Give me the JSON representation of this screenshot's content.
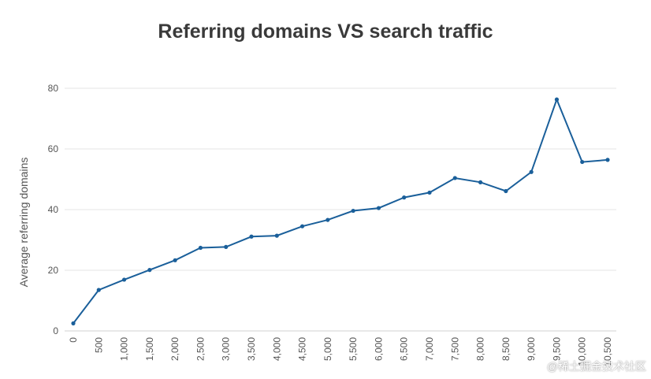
{
  "chart_data": {
    "type": "line",
    "title": "Referring domains VS search traffic",
    "xlabel": "",
    "ylabel": "Average referring domains",
    "x": [
      "0",
      "500",
      "1,000",
      "1,500",
      "2,000",
      "2,500",
      "3,000",
      "3,500",
      "4,000",
      "4,500",
      "5,000",
      "5,500",
      "6,000",
      "6,500",
      "7,000",
      "7,500",
      "8,000",
      "8,500",
      "9,000",
      "9,500",
      "10,000",
      "10,500"
    ],
    "series": [
      {
        "values": [
          2.5,
          13.5,
          16.9,
          20.1,
          23.3,
          27.4,
          27.7,
          31.1,
          31.4,
          34.5,
          36.6,
          39.6,
          40.5,
          44.0,
          45.6,
          50.4,
          49.0,
          46.1,
          52.4,
          76.3,
          55.7,
          56.4
        ]
      }
    ],
    "ylim": [
      0,
      80
    ],
    "yticks": [
      0,
      20,
      40,
      60,
      80
    ],
    "grid": true,
    "line_color": "#1a5f9a"
  },
  "watermark": "@稀土掘金技术社区"
}
